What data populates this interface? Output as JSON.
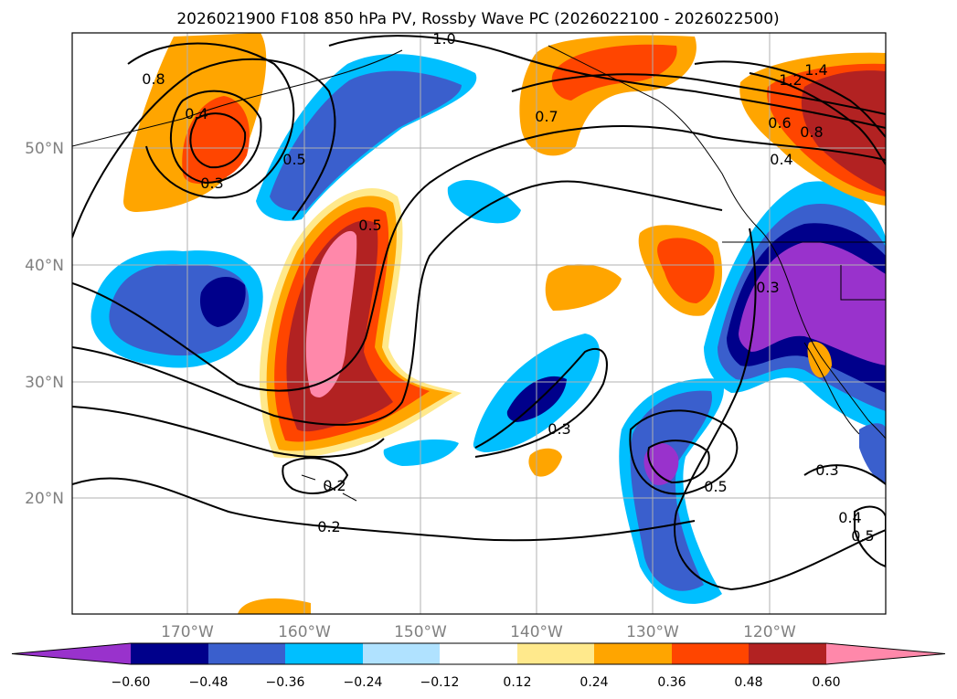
{
  "title": "2026021900 F108 850 hPa PV, Rossby Wave PC (2026022100 - 2026022500)",
  "latitude_labels": [
    "50°N",
    "40°N",
    "30°N",
    "20°N"
  ],
  "longitude_labels": [
    "170°W",
    "160°W",
    "150°W",
    "140°W",
    "130°W",
    "120°W"
  ],
  "colorbar": {
    "ticks": [
      "−0.60",
      "−0.48",
      "−0.36",
      "−0.24",
      "−0.12",
      "0.12",
      "0.24",
      "0.36",
      "0.48",
      "0.60"
    ],
    "colors": [
      "#9932cc",
      "#00008b",
      "#3a5fcd",
      "#00bfff",
      "#b0e2ff",
      "#ffffff",
      "#ffe98c",
      "#ffa500",
      "#ff4500",
      "#b22222",
      "#ff88aa"
    ]
  },
  "contour_labels": [
    "0.8",
    "0.4",
    "0.3",
    "1.0",
    "0.5",
    "0.5",
    "0.7",
    "1.4",
    "1.2",
    "0.6",
    "0.8",
    "0.4",
    "0.3",
    "0.3",
    "0.5",
    "0.3",
    "0.2",
    "0.2",
    "0.4",
    "0.5"
  ],
  "colors": {
    "contour": "#000000",
    "grid": "#b0b0b0",
    "coast": "#000000"
  }
}
